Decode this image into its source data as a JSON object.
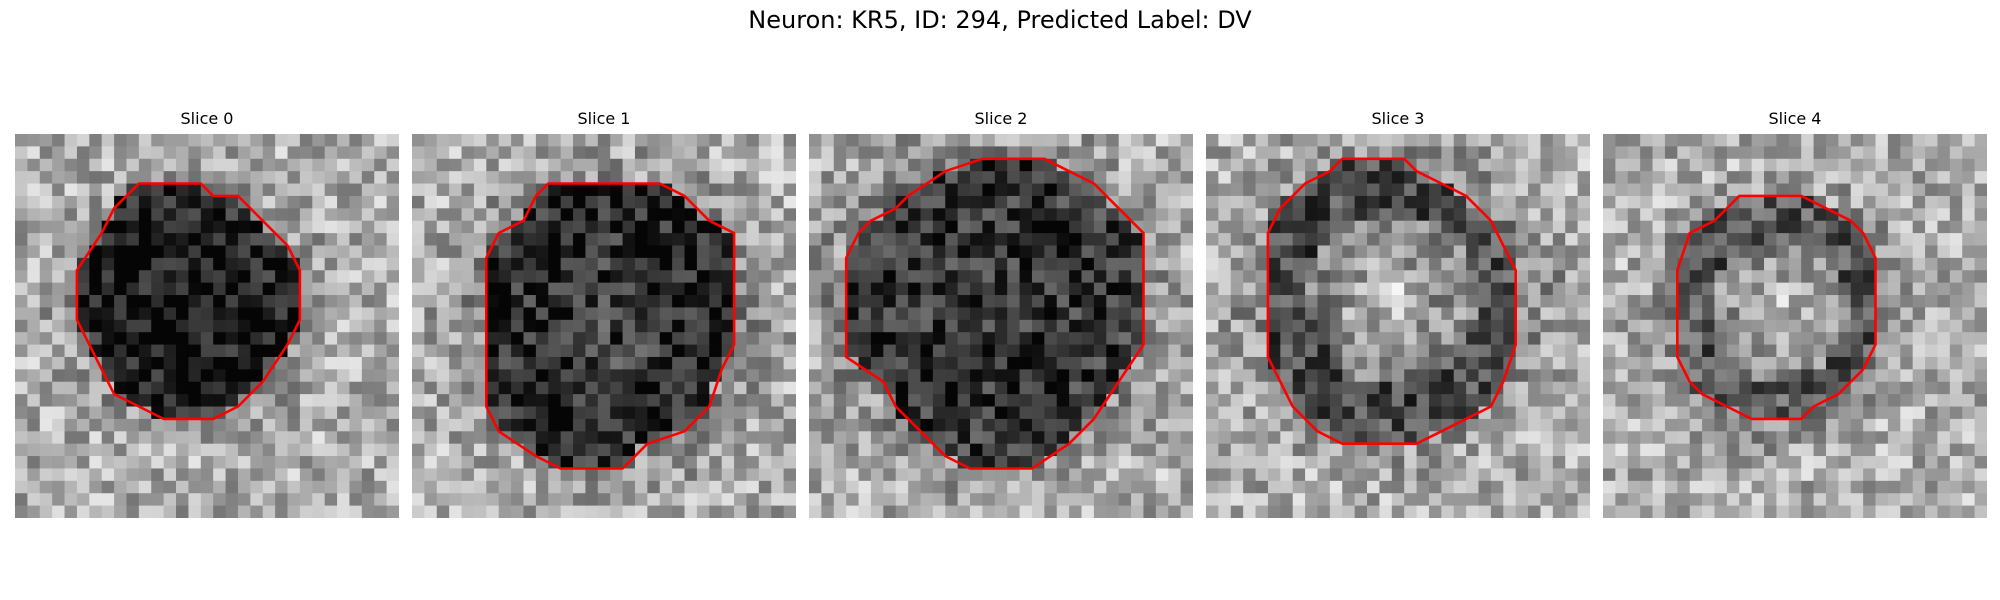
{
  "figure": {
    "title": "Neuron: KR5, ID: 294, Predicted Label: DV"
  },
  "panels": [
    {
      "title": "Slice 0",
      "contour_color": "#ff0000",
      "texture": {
        "seed": 11,
        "dark_strength": 0.65,
        "ring": false,
        "center_bright": 0.0
      }
    },
    {
      "title": "Slice 1",
      "contour_color": "#ff0000",
      "texture": {
        "seed": 23,
        "dark_strength": 0.6,
        "ring": false,
        "center_bright": 0.25
      }
    },
    {
      "title": "Slice 2",
      "contour_color": "#ff0000",
      "texture": {
        "seed": 37,
        "dark_strength": 0.55,
        "ring": false,
        "center_bright": 0.1
      }
    },
    {
      "title": "Slice 3",
      "contour_color": "#ff0000",
      "texture": {
        "seed": 41,
        "dark_strength": 0.45,
        "ring": true,
        "center_bright": 0.35
      }
    },
    {
      "title": "Slice 4",
      "contour_color": "#ff0000",
      "texture": {
        "seed": 53,
        "dark_strength": 0.4,
        "ring": true,
        "center_bright": 0.4
      }
    }
  ]
}
